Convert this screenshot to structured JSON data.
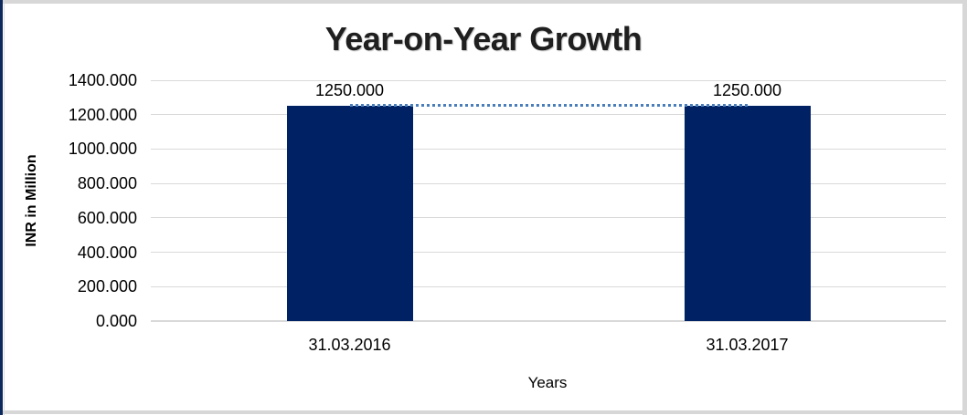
{
  "chart_data": {
    "type": "bar",
    "title": "Year-on-Year Growth",
    "xlabel": "Years",
    "ylabel": "INR in Million",
    "categories": [
      "31.03.2016",
      "31.03.2017"
    ],
    "values": [
      1250.0,
      1250.0
    ],
    "data_labels": [
      "1250.000",
      "1250.000"
    ],
    "ylim": [
      0,
      1400
    ],
    "ytick_step": 200,
    "ytick_labels": [
      "1400.000",
      "1200.000",
      "1000.000",
      "800.000",
      "600.000",
      "400.000",
      "200.000",
      "0.000"
    ],
    "grid": "horizontal-only",
    "legend": "none",
    "colors": {
      "bar": "#002265",
      "trend_line": "#4A7EBB",
      "gridline": "#D9D9D9",
      "axis_line": "#D9D9D9",
      "title_text": "#1F1F1F",
      "frame_left_border": "#0E2A5C",
      "frame_gray_border": "#D7D7D7"
    },
    "trendline": {
      "type": "line",
      "style": "dotted",
      "values": [
        1250.0,
        1250.0
      ]
    }
  }
}
